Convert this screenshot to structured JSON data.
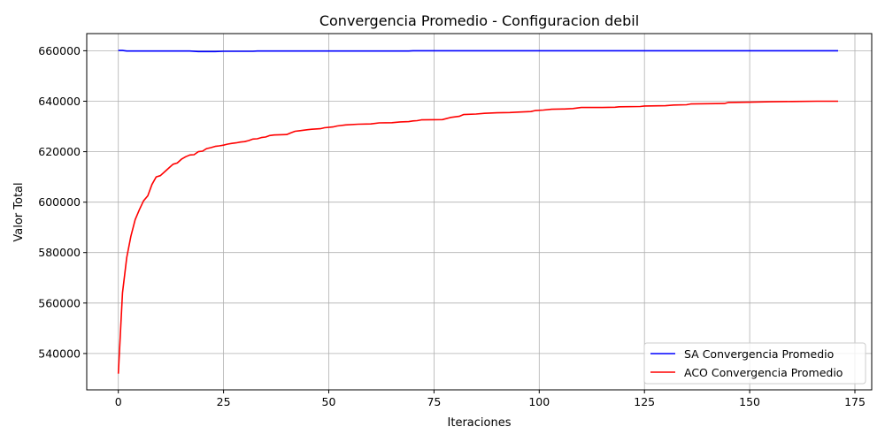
{
  "chart_data": {
    "type": "line",
    "title": "Convergencia Promedio - Configuracion debil",
    "xlabel": "Iteraciones",
    "ylabel": "Valor Total",
    "xlim": [
      -7.5,
      179
    ],
    "ylim": [
      525600,
      666800
    ],
    "xticks": [
      0,
      25,
      50,
      75,
      100,
      125,
      150,
      175
    ],
    "xtick_labels": [
      "0",
      "25",
      "50",
      "75",
      "100",
      "125",
      "150",
      "175"
    ],
    "yticks": [
      540000,
      560000,
      580000,
      600000,
      620000,
      640000,
      660000
    ],
    "ytick_labels": [
      "540000",
      "560000",
      "580000",
      "600000",
      "620000",
      "640000",
      "660000"
    ],
    "grid": true,
    "legend_position": "lower-right",
    "series": [
      {
        "name": "SA Convergencia Promedio",
        "color": "#0000ff",
        "points": [
          [
            0,
            660100
          ],
          [
            1,
            660100
          ],
          [
            2,
            659900
          ],
          [
            5,
            659900
          ],
          [
            10,
            659900
          ],
          [
            17,
            659900
          ],
          [
            19,
            659700
          ],
          [
            23,
            659700
          ],
          [
            25,
            659800
          ],
          [
            32,
            659800
          ],
          [
            33,
            659900
          ],
          [
            50,
            659900
          ],
          [
            60,
            659900
          ],
          [
            69,
            659900
          ],
          [
            70,
            660000
          ],
          [
            80,
            660000
          ],
          [
            100,
            660000
          ],
          [
            130,
            660000
          ],
          [
            150,
            660000
          ],
          [
            171,
            660000
          ]
        ]
      },
      {
        "name": "ACO Convergencia Promedio",
        "color": "#ff0000",
        "points": [
          [
            0,
            532000
          ],
          [
            1,
            564000
          ],
          [
            2,
            578000
          ],
          [
            3,
            586500
          ],
          [
            4,
            593000
          ],
          [
            5,
            597000
          ],
          [
            6,
            600500
          ],
          [
            7,
            602500
          ],
          [
            8,
            607000
          ],
          [
            9,
            610000
          ],
          [
            10,
            610500
          ],
          [
            11,
            612000
          ],
          [
            12,
            613500
          ],
          [
            13,
            615000
          ],
          [
            14,
            615500
          ],
          [
            15,
            617000
          ],
          [
            16,
            618000
          ],
          [
            17,
            618700
          ],
          [
            18,
            618800
          ],
          [
            19,
            620000
          ],
          [
            20,
            620200
          ],
          [
            21,
            621200
          ],
          [
            22,
            621600
          ],
          [
            23,
            622100
          ],
          [
            24,
            622300
          ],
          [
            25,
            622600
          ],
          [
            26,
            623000
          ],
          [
            27,
            623300
          ],
          [
            28,
            623500
          ],
          [
            29,
            623800
          ],
          [
            30,
            624000
          ],
          [
            31,
            624400
          ],
          [
            32,
            625000
          ],
          [
            33,
            625100
          ],
          [
            34,
            625600
          ],
          [
            35,
            625800
          ],
          [
            36,
            626400
          ],
          [
            37,
            626600
          ],
          [
            40,
            626800
          ],
          [
            41,
            627500
          ],
          [
            42,
            628100
          ],
          [
            43,
            628300
          ],
          [
            45,
            628700
          ],
          [
            46,
            628900
          ],
          [
            48,
            629100
          ],
          [
            49,
            629500
          ],
          [
            51,
            629800
          ],
          [
            52,
            630200
          ],
          [
            54,
            630600
          ],
          [
            57,
            630900
          ],
          [
            60,
            631000
          ],
          [
            62,
            631400
          ],
          [
            65,
            631500
          ],
          [
            67,
            631800
          ],
          [
            69,
            631900
          ],
          [
            70,
            632200
          ],
          [
            71,
            632300
          ],
          [
            72,
            632600
          ],
          [
            77,
            632700
          ],
          [
            79,
            633600
          ],
          [
            81,
            634000
          ],
          [
            82,
            634700
          ],
          [
            85,
            634900
          ],
          [
            87,
            635200
          ],
          [
            90,
            635400
          ],
          [
            93,
            635500
          ],
          [
            95,
            635700
          ],
          [
            98,
            635900
          ],
          [
            99,
            636300
          ],
          [
            101,
            636500
          ],
          [
            103,
            636800
          ],
          [
            106,
            636900
          ],
          [
            108,
            637100
          ],
          [
            110,
            637500
          ],
          [
            115,
            637500
          ],
          [
            118,
            637600
          ],
          [
            119,
            637800
          ],
          [
            124,
            637900
          ],
          [
            125,
            638100
          ],
          [
            130,
            638200
          ],
          [
            132,
            638500
          ],
          [
            135,
            638600
          ],
          [
            136,
            638900
          ],
          [
            140,
            639000
          ],
          [
            144,
            639100
          ],
          [
            145,
            639500
          ],
          [
            150,
            639600
          ],
          [
            155,
            639800
          ],
          [
            160,
            639900
          ],
          [
            166,
            640000
          ],
          [
            171,
            640000
          ]
        ]
      }
    ]
  }
}
